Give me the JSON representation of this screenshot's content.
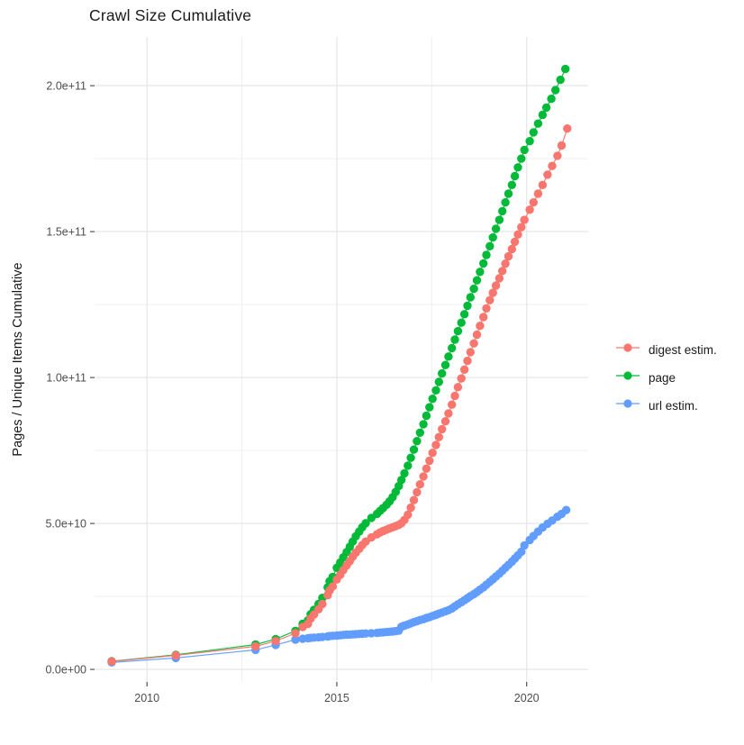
{
  "chart_data": {
    "type": "scatter",
    "title": "Crawl Size Cumulative",
    "xlabel": "",
    "ylabel": "Pages / Unique Items Cumulative",
    "units_note": "point values given as [decimal_year, billions_of_items]; 1 unit = 1e9",
    "x_domain": [
      2008.62,
      2021.62
    ],
    "y_domain_billions": [
      -4.3,
      216.7
    ],
    "grid": {
      "major_color": "#e3e3e3",
      "minor_color": "#efefef",
      "grid_on": true
    },
    "axis": {
      "tick_color": "#333333",
      "tick_label_color": "#4d4d4d"
    },
    "x_ticks": [
      {
        "label": "2010",
        "year": 2010
      },
      {
        "label": "2015",
        "year": 2015
      },
      {
        "label": "2020",
        "year": 2020
      }
    ],
    "x_minor_years": [
      2012.5,
      2017.5
    ],
    "y_ticks": [
      {
        "label": "0.0e+00",
        "value_billions": 0
      },
      {
        "label": "5.0e+10",
        "value_billions": 50
      },
      {
        "label": "1.0e+11",
        "value_billions": 100
      },
      {
        "label": "1.5e+11",
        "value_billions": 150
      },
      {
        "label": "2.0e+11",
        "value_billions": 200
      }
    ],
    "y_minor_billions": [
      25,
      75,
      125,
      175
    ],
    "legend_position": "right",
    "series": [
      {
        "name": "digest estim.",
        "color": "#F8766D",
        "points": [
          [
            2009.07,
            2.7
          ],
          [
            2010.76,
            4.8
          ],
          [
            2012.86,
            7.9
          ],
          [
            2013.39,
            9.7
          ],
          [
            2013.91,
            12.4
          ],
          [
            2014.1,
            14.5
          ],
          [
            2014.24,
            15.6
          ],
          [
            2014.31,
            17.4
          ],
          [
            2014.4,
            18.8
          ],
          [
            2014.52,
            20.6
          ],
          [
            2014.62,
            22.4
          ],
          [
            2014.76,
            25.4
          ],
          [
            2014.81,
            27.0
          ],
          [
            2014.89,
            28.4
          ],
          [
            2015.0,
            30.8
          ],
          [
            2015.09,
            32.4
          ],
          [
            2015.17,
            34.0
          ],
          [
            2015.26,
            35.6
          ],
          [
            2015.34,
            37.1
          ],
          [
            2015.42,
            38.6
          ],
          [
            2015.5,
            40.0
          ],
          [
            2015.59,
            41.3
          ],
          [
            2015.67,
            42.6
          ],
          [
            2015.76,
            43.8
          ],
          [
            2015.91,
            45.2
          ],
          [
            2016.06,
            46.3
          ],
          [
            2016.14,
            46.9
          ],
          [
            2016.22,
            47.4
          ],
          [
            2016.31,
            47.9
          ],
          [
            2016.39,
            48.3
          ],
          [
            2016.47,
            48.7
          ],
          [
            2016.55,
            49.1
          ],
          [
            2016.63,
            49.5
          ],
          [
            2016.7,
            50.1
          ],
          [
            2016.78,
            51.2
          ],
          [
            2016.87,
            53.0
          ],
          [
            2016.95,
            55.4
          ],
          [
            2017.03,
            58.0
          ],
          [
            2017.11,
            60.7
          ],
          [
            2017.19,
            63.4
          ],
          [
            2017.28,
            66.1
          ],
          [
            2017.36,
            68.8
          ],
          [
            2017.44,
            71.5
          ],
          [
            2017.52,
            74.2
          ],
          [
            2017.61,
            76.9
          ],
          [
            2017.69,
            79.6
          ],
          [
            2017.77,
            82.3
          ],
          [
            2017.86,
            85.0
          ],
          [
            2017.94,
            87.7
          ],
          [
            2018.03,
            90.7
          ],
          [
            2018.11,
            93.7
          ],
          [
            2018.19,
            96.7
          ],
          [
            2018.28,
            99.7
          ],
          [
            2018.36,
            102.7
          ],
          [
            2018.44,
            105.7
          ],
          [
            2018.52,
            108.7
          ],
          [
            2018.61,
            111.7
          ],
          [
            2018.69,
            114.7
          ],
          [
            2018.77,
            117.7
          ],
          [
            2018.86,
            120.7
          ],
          [
            2018.94,
            123.7
          ],
          [
            2019.03,
            126.5
          ],
          [
            2019.11,
            129.0
          ],
          [
            2019.19,
            131.5
          ],
          [
            2019.28,
            134.0
          ],
          [
            2019.36,
            136.5
          ],
          [
            2019.44,
            139.0
          ],
          [
            2019.52,
            141.5
          ],
          [
            2019.61,
            144.0
          ],
          [
            2019.69,
            146.5
          ],
          [
            2019.77,
            149.0
          ],
          [
            2019.86,
            151.5
          ],
          [
            2019.94,
            154.0
          ],
          [
            2020.08,
            157.5
          ],
          [
            2020.18,
            160.0
          ],
          [
            2020.3,
            163.0
          ],
          [
            2020.42,
            166.0
          ],
          [
            2020.55,
            169.5
          ],
          [
            2020.67,
            172.5
          ],
          [
            2020.81,
            176.0
          ],
          [
            2020.92,
            179.5
          ],
          [
            2021.07,
            185.3
          ]
        ]
      },
      {
        "name": "page",
        "color": "#00BA38",
        "points": [
          [
            2009.07,
            2.8
          ],
          [
            2010.76,
            5.0
          ],
          [
            2012.86,
            8.5
          ],
          [
            2013.39,
            10.4
          ],
          [
            2013.91,
            13.2
          ],
          [
            2014.1,
            15.6
          ],
          [
            2014.24,
            16.8
          ],
          [
            2014.31,
            18.9
          ],
          [
            2014.4,
            20.4
          ],
          [
            2014.52,
            22.4
          ],
          [
            2014.62,
            24.5
          ],
          [
            2014.76,
            28.1
          ],
          [
            2014.81,
            30.2
          ],
          [
            2014.89,
            31.7
          ],
          [
            2015.0,
            34.8
          ],
          [
            2015.09,
            36.6
          ],
          [
            2015.17,
            38.4
          ],
          [
            2015.26,
            40.2
          ],
          [
            2015.34,
            42.0
          ],
          [
            2015.42,
            43.8
          ],
          [
            2015.5,
            45.6
          ],
          [
            2015.59,
            47.2
          ],
          [
            2015.67,
            48.7
          ],
          [
            2015.76,
            50.1
          ],
          [
            2015.91,
            51.9
          ],
          [
            2016.06,
            53.3
          ],
          [
            2016.14,
            54.3
          ],
          [
            2016.22,
            55.3
          ],
          [
            2016.31,
            56.4
          ],
          [
            2016.39,
            57.6
          ],
          [
            2016.47,
            59.0
          ],
          [
            2016.55,
            60.8
          ],
          [
            2016.63,
            62.8
          ],
          [
            2016.7,
            64.9
          ],
          [
            2016.78,
            67.2
          ],
          [
            2016.87,
            69.8
          ],
          [
            2016.95,
            72.5
          ],
          [
            2017.03,
            75.3
          ],
          [
            2017.11,
            78.2
          ],
          [
            2017.19,
            81.1
          ],
          [
            2017.28,
            84.0
          ],
          [
            2017.36,
            86.9
          ],
          [
            2017.44,
            89.8
          ],
          [
            2017.52,
            92.7
          ],
          [
            2017.61,
            95.6
          ],
          [
            2017.69,
            98.5
          ],
          [
            2017.77,
            101.4
          ],
          [
            2017.86,
            104.3
          ],
          [
            2017.94,
            107.2
          ],
          [
            2018.03,
            110.1
          ],
          [
            2018.11,
            113.0
          ],
          [
            2018.19,
            115.9
          ],
          [
            2018.28,
            118.8
          ],
          [
            2018.36,
            121.7
          ],
          [
            2018.44,
            124.6
          ],
          [
            2018.52,
            127.5
          ],
          [
            2018.61,
            130.4
          ],
          [
            2018.69,
            133.3
          ],
          [
            2018.77,
            136.2
          ],
          [
            2018.86,
            139.1
          ],
          [
            2018.94,
            142.0
          ],
          [
            2019.03,
            145.0
          ],
          [
            2019.11,
            148.0
          ],
          [
            2019.19,
            151.0
          ],
          [
            2019.28,
            154.0
          ],
          [
            2019.36,
            157.0
          ],
          [
            2019.44,
            160.0
          ],
          [
            2019.52,
            163.0
          ],
          [
            2019.61,
            166.0
          ],
          [
            2019.69,
            169.0
          ],
          [
            2019.77,
            172.0
          ],
          [
            2019.86,
            175.0
          ],
          [
            2019.94,
            178.0
          ],
          [
            2020.08,
            181.0
          ],
          [
            2020.18,
            184.0
          ],
          [
            2020.3,
            187.0
          ],
          [
            2020.42,
            190.0
          ],
          [
            2020.52,
            192.5
          ],
          [
            2020.65,
            195.5
          ],
          [
            2020.76,
            198.5
          ],
          [
            2020.89,
            202.0
          ],
          [
            2021.02,
            205.7
          ]
        ]
      },
      {
        "name": "url estim.",
        "color": "#619CFF",
        "points": [
          [
            2009.07,
            2.4
          ],
          [
            2010.76,
            3.9
          ],
          [
            2012.86,
            6.7
          ],
          [
            2013.39,
            8.4
          ],
          [
            2013.91,
            10.2
          ],
          [
            2014.1,
            10.5
          ],
          [
            2014.24,
            10.7
          ],
          [
            2014.31,
            10.8
          ],
          [
            2014.4,
            10.9
          ],
          [
            2014.52,
            11.0
          ],
          [
            2014.62,
            11.1
          ],
          [
            2014.76,
            11.3
          ],
          [
            2014.81,
            11.4
          ],
          [
            2014.89,
            11.5
          ],
          [
            2015.0,
            11.6
          ],
          [
            2015.09,
            11.7
          ],
          [
            2015.17,
            11.8
          ],
          [
            2015.26,
            11.9
          ],
          [
            2015.34,
            11.95
          ],
          [
            2015.42,
            12.0
          ],
          [
            2015.5,
            12.1
          ],
          [
            2015.59,
            12.15
          ],
          [
            2015.67,
            12.2
          ],
          [
            2015.76,
            12.3
          ],
          [
            2015.91,
            12.4
          ],
          [
            2016.06,
            12.5
          ],
          [
            2016.14,
            12.6
          ],
          [
            2016.22,
            12.7
          ],
          [
            2016.31,
            12.8
          ],
          [
            2016.39,
            12.9
          ],
          [
            2016.47,
            13.0
          ],
          [
            2016.55,
            13.1
          ],
          [
            2016.63,
            13.3
          ],
          [
            2016.7,
            14.6
          ],
          [
            2016.78,
            15.0
          ],
          [
            2016.87,
            15.4
          ],
          [
            2016.95,
            15.8
          ],
          [
            2017.03,
            16.2
          ],
          [
            2017.11,
            16.5
          ],
          [
            2017.19,
            16.9
          ],
          [
            2017.28,
            17.2
          ],
          [
            2017.36,
            17.6
          ],
          [
            2017.44,
            17.9
          ],
          [
            2017.52,
            18.3
          ],
          [
            2017.61,
            18.7
          ],
          [
            2017.69,
            19.1
          ],
          [
            2017.77,
            19.5
          ],
          [
            2017.86,
            19.9
          ],
          [
            2017.94,
            20.3
          ],
          [
            2018.03,
            20.9
          ],
          [
            2018.11,
            21.6
          ],
          [
            2018.19,
            22.3
          ],
          [
            2018.28,
            23.0
          ],
          [
            2018.36,
            23.7
          ],
          [
            2018.44,
            24.4
          ],
          [
            2018.52,
            25.1
          ],
          [
            2018.61,
            25.8
          ],
          [
            2018.69,
            26.5
          ],
          [
            2018.77,
            27.3
          ],
          [
            2018.86,
            28.1
          ],
          [
            2018.94,
            29.0
          ],
          [
            2019.03,
            30.0
          ],
          [
            2019.11,
            30.9
          ],
          [
            2019.19,
            31.8
          ],
          [
            2019.28,
            32.8
          ],
          [
            2019.36,
            33.8
          ],
          [
            2019.44,
            34.8
          ],
          [
            2019.52,
            35.8
          ],
          [
            2019.61,
            36.9
          ],
          [
            2019.69,
            38.0
          ],
          [
            2019.77,
            39.1
          ],
          [
            2019.86,
            40.3
          ],
          [
            2019.94,
            42.5
          ],
          [
            2020.08,
            44.3
          ],
          [
            2020.18,
            45.7
          ],
          [
            2020.3,
            47.2
          ],
          [
            2020.42,
            48.6
          ],
          [
            2020.55,
            49.9
          ],
          [
            2020.67,
            51.0
          ],
          [
            2020.81,
            52.3
          ],
          [
            2020.92,
            53.3
          ],
          [
            2021.04,
            54.6
          ]
        ]
      }
    ]
  }
}
